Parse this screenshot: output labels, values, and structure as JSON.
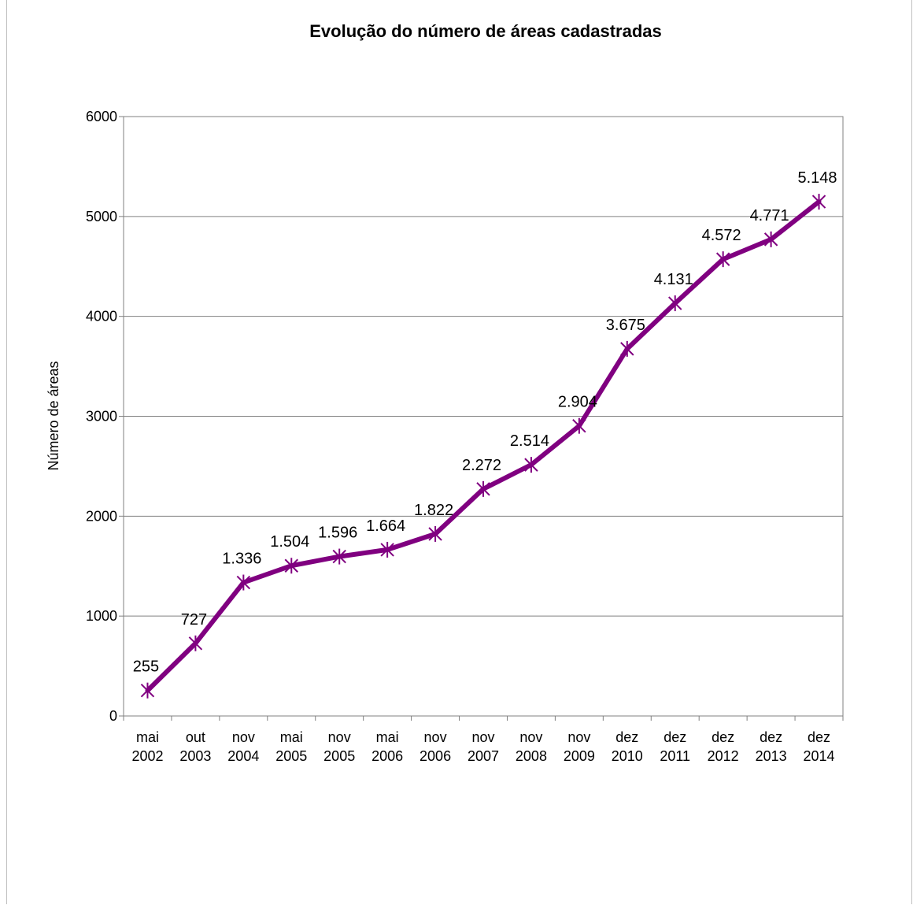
{
  "chart_data": {
    "type": "line",
    "title": "Evolução do número de áreas cadastradas",
    "xlabel": "",
    "ylabel": "Número de áreas",
    "ylim": [
      0,
      6000
    ],
    "yticks": [
      "0",
      "1000",
      "2000",
      "3000",
      "4000",
      "5000",
      "6000"
    ],
    "grid": true,
    "legend": "none",
    "categories": [
      [
        "mai",
        "2002"
      ],
      [
        "out",
        "2003"
      ],
      [
        "nov",
        "2004"
      ],
      [
        "mai",
        "2005"
      ],
      [
        "nov",
        "2005"
      ],
      [
        "mai",
        "2006"
      ],
      [
        "nov",
        "2006"
      ],
      [
        "nov",
        "2007"
      ],
      [
        "nov",
        "2008"
      ],
      [
        "nov",
        "2009"
      ],
      [
        "dez",
        "2010"
      ],
      [
        "dez",
        "2011"
      ],
      [
        "dez",
        "2012"
      ],
      [
        "dez",
        "2013"
      ],
      [
        "dez",
        "2014"
      ]
    ],
    "series": [
      {
        "values": [
          255,
          727,
          1336,
          1504,
          1596,
          1664,
          1822,
          2272,
          2514,
          2904,
          3675,
          4131,
          4572,
          4771,
          5148
        ],
        "labels": [
          "255",
          "727",
          "1.336",
          "1.504",
          "1.596",
          "1.664",
          "1.822",
          "2.272",
          "2.514",
          "2.904",
          "3.675",
          "4.131",
          "4.572",
          "4.771",
          "5.148"
        ],
        "color": "#800080",
        "marker": "asterisk"
      }
    ]
  }
}
